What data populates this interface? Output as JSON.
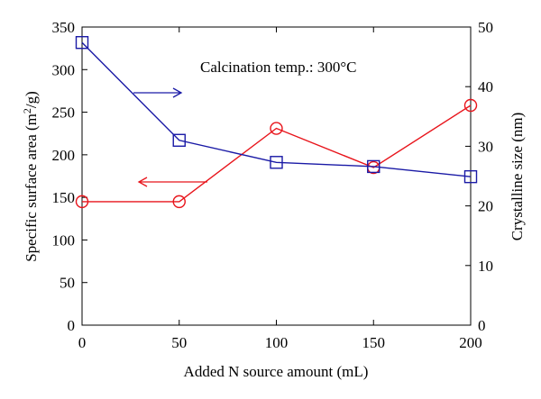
{
  "chart_data": {
    "type": "line",
    "x": [
      0,
      50,
      100,
      150,
      200
    ],
    "xlabel": "Added N source amount (mL)",
    "xlim": [
      0,
      200
    ],
    "xticks": [
      0,
      50,
      100,
      150,
      200
    ],
    "ylabel_left_main": "Specific surface area (m",
    "ylabel_left_sup": "2",
    "ylabel_left_tail": "/g)",
    "ylim_left": [
      0,
      350
    ],
    "yticks_left": [
      0,
      50,
      100,
      150,
      200,
      250,
      300,
      350
    ],
    "ylabel_right": "Crystalline size (nm)",
    "ylim_right": [
      0,
      50
    ],
    "yticks_right": [
      0,
      10,
      20,
      30,
      40,
      50
    ],
    "annotation": "Calcination temp.: 300°C",
    "grid": false,
    "series": [
      {
        "axis": "left",
        "marker": "circle",
        "color": "#e8141b",
        "values": [
          145,
          145,
          231,
          185,
          258
        ]
      },
      {
        "axis": "right",
        "marker": "square",
        "color": "#1a1aa6",
        "values": [
          47.4,
          31.0,
          27.3,
          26.6,
          24.9
        ]
      }
    ]
  }
}
